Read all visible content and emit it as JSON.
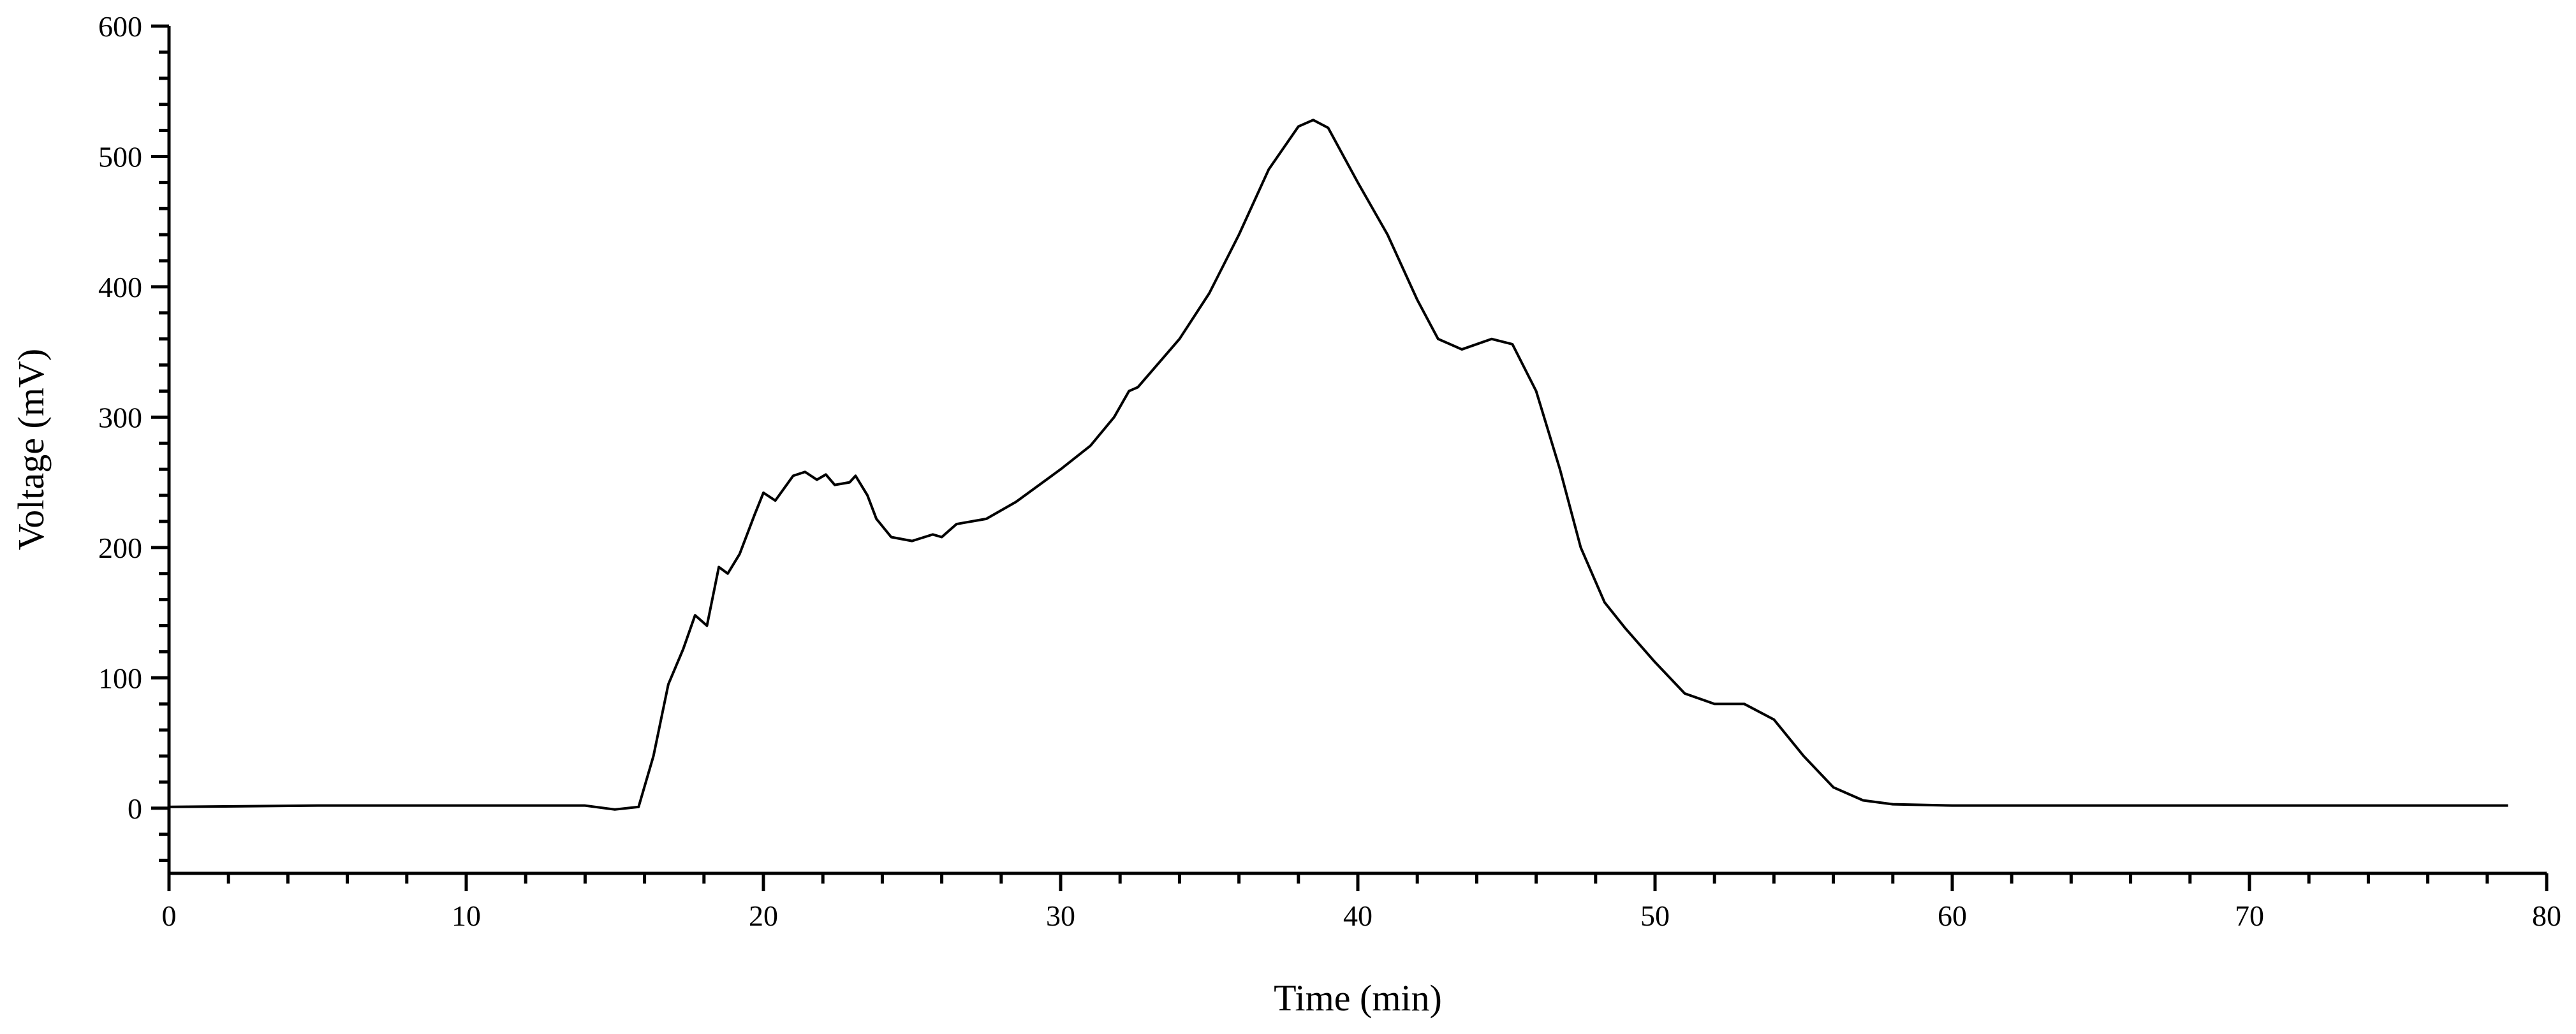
{
  "chart_data": {
    "type": "line",
    "xlabel": "Time (min)",
    "ylabel": "Voltage (mV)",
    "color": "#000000",
    "x": [
      0,
      5,
      10,
      14,
      15,
      15.8,
      16.3,
      16.8,
      17.3,
      17.7,
      18.1,
      18.5,
      18.8,
      19.2,
      19.7,
      20.0,
      20.4,
      21.0,
      21.4,
      21.8,
      22.1,
      22.4,
      22.9,
      23.1,
      23.5,
      23.8,
      24.3,
      25.0,
      25.7,
      26.0,
      26.5,
      27.5,
      28.5,
      30.0,
      31.0,
      31.8,
      32.3,
      32.6,
      34.0,
      35.0,
      36.0,
      37.0,
      38.0,
      38.5,
      39.0,
      40.0,
      41.0,
      42.0,
      42.7,
      43.5,
      44.5,
      45.2,
      46.0,
      46.8,
      47.5,
      48.3,
      49.0,
      50.0,
      51.0,
      52.0,
      53.0,
      54.0,
      55.0,
      56.0,
      57.0,
      58.0,
      60,
      70,
      78.7
    ],
    "values": [
      1,
      2,
      2,
      2,
      -1,
      1,
      40,
      95,
      122,
      148,
      140,
      185,
      180,
      195,
      225,
      242,
      236,
      255,
      258,
      252,
      256,
      248,
      250,
      255,
      240,
      222,
      208,
      205,
      210,
      208,
      218,
      222,
      235,
      260,
      278,
      300,
      320,
      323,
      360,
      395,
      440,
      490,
      523,
      528,
      522,
      480,
      440,
      390,
      360,
      352,
      360,
      356,
      320,
      260,
      200,
      158,
      138,
      112,
      88,
      80,
      80,
      68,
      40,
      16,
      6,
      3,
      2,
      2,
      2
    ],
    "xlim": [
      0,
      80
    ],
    "xticks": [
      0,
      10,
      20,
      30,
      40,
      50,
      60,
      70,
      80
    ],
    "xminorticks": [
      2,
      4,
      6,
      8,
      12,
      14,
      16,
      18,
      22,
      24,
      26,
      28,
      32,
      34,
      36,
      38,
      42,
      44,
      46,
      48,
      52,
      54,
      56,
      58,
      62,
      64,
      66,
      68,
      72,
      74,
      76,
      78
    ],
    "ylim": [
      -50,
      600
    ],
    "yticks": [
      0,
      100,
      200,
      300,
      400,
      500,
      600
    ],
    "yminorticks": [
      -40,
      -20,
      20,
      40,
      60,
      80,
      120,
      140,
      160,
      180,
      220,
      240,
      260,
      280,
      320,
      340,
      360,
      380,
      420,
      440,
      460,
      480,
      520,
      540,
      560,
      580
    ],
    "grid": false
  }
}
